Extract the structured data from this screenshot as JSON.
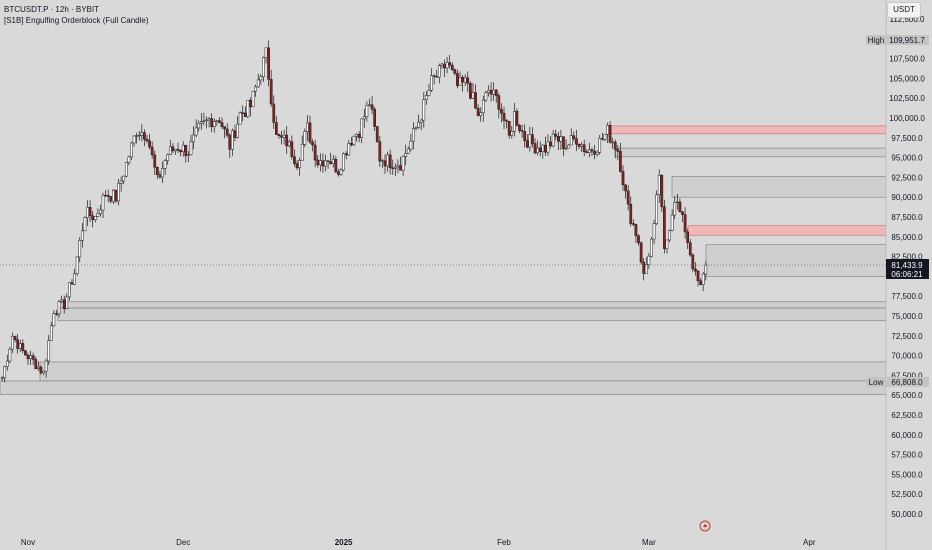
{
  "header": {
    "symbol_line": "BTCUSDT.P · 12h · BYBIT",
    "indicator_line": "[S1B] Engulfing Orderblock (Full Candle)",
    "currency": "USDT"
  },
  "price_scale": {
    "ticks": [
      "112,500.0",
      "107,500.0",
      "105,000.0",
      "102,500.0",
      "100,000.0",
      "97,500.0",
      "95,000.0",
      "92,500.0",
      "90,000.0",
      "87,500.0",
      "85,000.0",
      "82,500.0",
      "77,500.0",
      "75,000.0",
      "72,500.0",
      "70,000.0",
      "67,500.0",
      "65,000.0",
      "62,500.0",
      "60,000.0",
      "57,500.0",
      "55,000.0",
      "52,500.0",
      "50,000.0"
    ],
    "high_label": "High",
    "high_value": "109,951.7",
    "low_label": "Low",
    "low_value": "66,808.0",
    "last_price": "81,433.9",
    "countdown": "06:06:21"
  },
  "time_axis": {
    "labels": [
      "Nov",
      "Dec",
      "2025",
      "Feb",
      "Mar",
      "Apr"
    ]
  },
  "colors": {
    "bull": "#ffffff",
    "bear": "#8a1f1f",
    "candle_outline": "#1a1a1a",
    "zone_bull": "#cfcfcf",
    "zone_bear": "#f0b7b7",
    "background": "#d9d9d9"
  },
  "chart_data": {
    "type": "candlestick",
    "symbol": "BTCUSDT.P",
    "timeframe": "12h",
    "exchange": "BYBIT",
    "ylim": [
      48500,
      113500
    ],
    "x_labels": [
      "Nov",
      "Dec",
      "2025",
      "Feb",
      "Mar",
      "Apr"
    ],
    "close_path": [
      {
        "date": "2024-10-27",
        "close": 67200
      },
      {
        "date": "2024-10-29",
        "close": 72500
      },
      {
        "date": "2024-10-31",
        "close": 70500
      },
      {
        "date": "2024-11-02",
        "close": 69300
      },
      {
        "date": "2024-11-04",
        "close": 67800
      },
      {
        "date": "2024-11-06",
        "close": 75800
      },
      {
        "date": "2024-11-08",
        "close": 76500
      },
      {
        "date": "2024-11-10",
        "close": 80500
      },
      {
        "date": "2024-11-12",
        "close": 88000
      },
      {
        "date": "2024-11-14",
        "close": 87500
      },
      {
        "date": "2024-11-16",
        "close": 90500
      },
      {
        "date": "2024-11-18",
        "close": 90000
      },
      {
        "date": "2024-11-20",
        "close": 94200
      },
      {
        "date": "2024-11-22",
        "close": 98500
      },
      {
        "date": "2024-11-24",
        "close": 98000
      },
      {
        "date": "2024-11-26",
        "close": 92000
      },
      {
        "date": "2024-11-28",
        "close": 95500
      },
      {
        "date": "2024-11-30",
        "close": 96400
      },
      {
        "date": "2024-12-02",
        "close": 95800
      },
      {
        "date": "2024-12-04",
        "close": 98500
      },
      {
        "date": "2024-12-06",
        "close": 99800
      },
      {
        "date": "2024-12-08",
        "close": 100000
      },
      {
        "date": "2024-12-10",
        "close": 96500
      },
      {
        "date": "2024-12-12",
        "close": 100500
      },
      {
        "date": "2024-12-14",
        "close": 101500
      },
      {
        "date": "2024-12-16",
        "close": 106000
      },
      {
        "date": "2024-12-17",
        "close": 108000
      },
      {
        "date": "2024-12-19",
        "close": 97500
      },
      {
        "date": "2024-12-21",
        "close": 97000
      },
      {
        "date": "2024-12-23",
        "close": 94500
      },
      {
        "date": "2024-12-25",
        "close": 98700
      },
      {
        "date": "2024-12-27",
        "close": 94500
      },
      {
        "date": "2024-12-29",
        "close": 95000
      },
      {
        "date": "2024-12-31",
        "close": 93500
      },
      {
        "date": "2025-01-02",
        "close": 97000
      },
      {
        "date": "2025-01-04",
        "close": 98500
      },
      {
        "date": "2025-01-06",
        "close": 102000
      },
      {
        "date": "2025-01-08",
        "close": 95000
      },
      {
        "date": "2025-01-10",
        "close": 94500
      },
      {
        "date": "2025-01-12",
        "close": 94300
      },
      {
        "date": "2025-01-14",
        "close": 97000
      },
      {
        "date": "2025-01-16",
        "close": 100500
      },
      {
        "date": "2025-01-18",
        "close": 104500
      },
      {
        "date": "2025-01-20",
        "close": 106000
      },
      {
        "date": "2025-01-21",
        "close": 107000
      },
      {
        "date": "2025-01-23",
        "close": 104000
      },
      {
        "date": "2025-01-25",
        "close": 104500
      },
      {
        "date": "2025-01-27",
        "close": 100000
      },
      {
        "date": "2025-01-29",
        "close": 103500
      },
      {
        "date": "2025-01-31",
        "close": 102000
      },
      {
        "date": "2025-02-02",
        "close": 97500
      },
      {
        "date": "2025-02-03",
        "close": 100500
      },
      {
        "date": "2025-02-05",
        "close": 97500
      },
      {
        "date": "2025-02-07",
        "close": 96500
      },
      {
        "date": "2025-02-09",
        "close": 96200
      },
      {
        "date": "2025-02-11",
        "close": 97500
      },
      {
        "date": "2025-02-13",
        "close": 96500
      },
      {
        "date": "2025-02-15",
        "close": 97500
      },
      {
        "date": "2025-02-17",
        "close": 95800
      },
      {
        "date": "2025-02-19",
        "close": 96500
      },
      {
        "date": "2025-02-21",
        "close": 98300
      },
      {
        "date": "2025-02-23",
        "close": 96000
      },
      {
        "date": "2025-02-25",
        "close": 88500
      },
      {
        "date": "2025-02-27",
        "close": 84500
      },
      {
        "date": "2025-02-28",
        "close": 80000
      },
      {
        "date": "2025-03-02",
        "close": 86000
      },
      {
        "date": "2025-03-03",
        "close": 93000
      },
      {
        "date": "2025-03-04",
        "close": 83000
      },
      {
        "date": "2025-03-06",
        "close": 90000
      },
      {
        "date": "2025-03-08",
        "close": 86000
      },
      {
        "date": "2025-03-10",
        "close": 80000
      },
      {
        "date": "2025-03-11",
        "close": 78500
      },
      {
        "date": "2025-03-12",
        "close": 81433.9
      }
    ],
    "high": 109951.7,
    "low": 66808.0,
    "last": 81433.9,
    "orderblocks": [
      {
        "type": "bearish",
        "top": 99000,
        "bottom": 98000
      },
      {
        "type": "bullish",
        "top": 96200,
        "bottom": 95100
      },
      {
        "type": "bullish",
        "top": 92600,
        "bottom": 90000
      },
      {
        "type": "bearish",
        "top": 86400,
        "bottom": 85200
      },
      {
        "type": "bullish",
        "top": 84000,
        "bottom": 80000
      },
      {
        "type": "bullish",
        "top": 76800,
        "bottom": 76000
      },
      {
        "type": "bullish",
        "top": 76000,
        "bottom": 74400
      },
      {
        "type": "bullish",
        "top": 69200,
        "bottom": 66800
      },
      {
        "type": "bullish",
        "top": 66800,
        "bottom": 65100
      }
    ]
  }
}
